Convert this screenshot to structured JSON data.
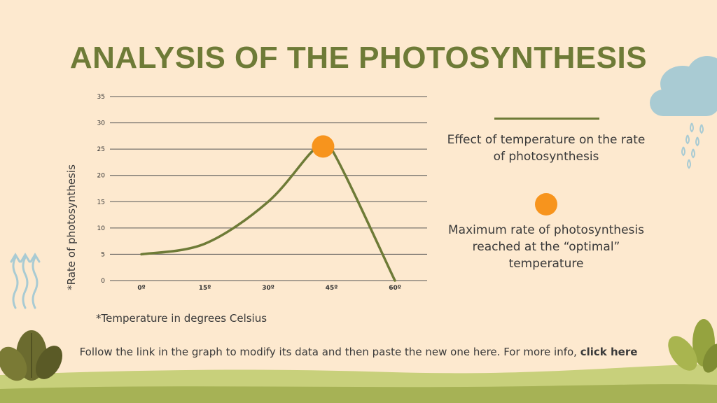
{
  "title": "ANALYSIS OF THE PHOTOSYNTHESIS",
  "ylabel": "*Rate of photosynthesis",
  "xnote": "*Temperature in degrees Celsius",
  "legend": {
    "line_text": "Effect of temperature on the rate of photosynthesis",
    "dot_text": "Maximum rate of photosynthesis reached at the “optimal” temperature"
  },
  "footer": {
    "text": "Follow the link in the graph to modify its data and then paste the new one here. For more info,",
    "link": "click here"
  },
  "colors": {
    "line": "#6e7b37",
    "marker": "#f7941d",
    "title": "#6e7b37",
    "background": "#fde9cf"
  },
  "chart_data": {
    "type": "line",
    "title": "",
    "xlabel": "*Temperature in degrees Celsius",
    "ylabel": "*Rate of photosynthesis",
    "categories": [
      "0º",
      "15º",
      "30º",
      "45º",
      "60º"
    ],
    "x": [
      0,
      15,
      30,
      45,
      60
    ],
    "ylim": [
      0,
      35
    ],
    "yticks": [
      "0",
      "5",
      "10",
      "15",
      "20",
      "25",
      "30",
      "35"
    ],
    "grid": true,
    "series": [
      {
        "values": [
          {
            "x": 0,
            "y": 5
          },
          {
            "x": 15,
            "y": 7
          },
          {
            "x": 30,
            "y": 15
          },
          {
            "x": 41,
            "y": 25
          },
          {
            "x": 45,
            "y": 25
          },
          {
            "x": 60,
            "y": 0
          }
        ]
      }
    ],
    "highlight_point": {
      "x": 43,
      "y": 25.5
    }
  }
}
